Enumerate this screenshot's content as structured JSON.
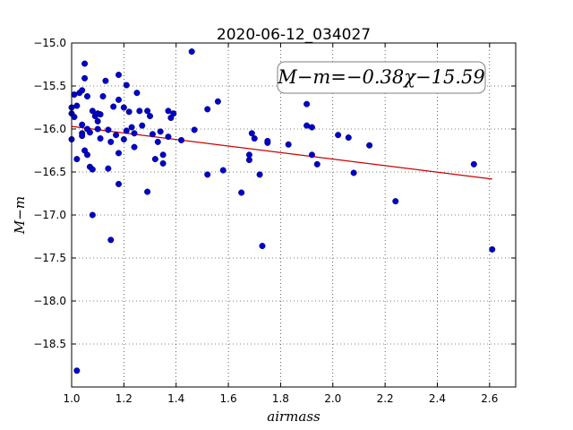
{
  "chart_data": {
    "type": "scatter",
    "title": "2020-06-12_034027",
    "xlabel": "airmass",
    "ylabel": "M−m",
    "xlim": [
      1.0,
      2.7
    ],
    "ylim": [
      -15.0,
      -19.0
    ],
    "y_inverted": true,
    "grid": true,
    "xticks": [
      "1.0",
      "1.2",
      "1.4",
      "1.6",
      "1.8",
      "2.0",
      "2.2",
      "2.4",
      "2.6"
    ],
    "yticks": [
      "−15.0",
      "−15.5",
      "−16.0",
      "−16.5",
      "−17.0",
      "−17.5",
      "−18.0",
      "−18.5"
    ],
    "xtick_values": [
      1.0,
      1.2,
      1.4,
      1.6,
      1.8,
      2.0,
      2.2,
      2.4,
      2.6
    ],
    "ytick_values": [
      -15.0,
      -15.5,
      -16.0,
      -16.5,
      -17.0,
      -17.5,
      -18.0,
      -18.5
    ],
    "annotation": "M−m=−0.38χ−15.59",
    "point_color": "#0000cc",
    "fit_color": "#cc0000",
    "fit": {
      "slope": -0.38,
      "intercept": -15.59,
      "x_range": [
        1.0,
        2.61
      ]
    },
    "points": [
      [
        1.0,
        -15.75
      ],
      [
        1.0,
        -15.82
      ],
      [
        1.0,
        -16.12
      ],
      [
        1.01,
        -15.6
      ],
      [
        1.01,
        -15.86
      ],
      [
        1.02,
        -15.73
      ],
      [
        1.02,
        -16.35
      ],
      [
        1.02,
        -18.81
      ],
      [
        1.03,
        -15.58
      ],
      [
        1.04,
        -15.55
      ],
      [
        1.04,
        -15.95
      ],
      [
        1.04,
        -16.05
      ],
      [
        1.04,
        -16.08
      ],
      [
        1.05,
        -16.25
      ],
      [
        1.05,
        -15.41
      ],
      [
        1.05,
        -15.24
      ],
      [
        1.06,
        -15.62
      ],
      [
        1.06,
        -16.0
      ],
      [
        1.06,
        -16.3
      ],
      [
        1.07,
        -16.04
      ],
      [
        1.07,
        -16.44
      ],
      [
        1.08,
        -15.79
      ],
      [
        1.08,
        -16.47
      ],
      [
        1.08,
        -17.0
      ],
      [
        1.09,
        -15.85
      ],
      [
        1.1,
        -15.82
      ],
      [
        1.1,
        -15.91
      ],
      [
        1.1,
        -16.0
      ],
      [
        1.11,
        -15.83
      ],
      [
        1.11,
        -16.11
      ],
      [
        1.12,
        -15.62
      ],
      [
        1.13,
        -15.44
      ],
      [
        1.14,
        -16.01
      ],
      [
        1.14,
        -16.46
      ],
      [
        1.15,
        -16.15
      ],
      [
        1.15,
        -17.29
      ],
      [
        1.16,
        -15.74
      ],
      [
        1.17,
        -16.07
      ],
      [
        1.18,
        -15.66
      ],
      [
        1.18,
        -16.28
      ],
      [
        1.18,
        -16.64
      ],
      [
        1.18,
        -15.37
      ],
      [
        1.2,
        -15.75
      ],
      [
        1.2,
        -16.12
      ],
      [
        1.21,
        -15.49
      ],
      [
        1.21,
        -16.02
      ],
      [
        1.22,
        -15.8
      ],
      [
        1.23,
        -15.98
      ],
      [
        1.24,
        -16.05
      ],
      [
        1.24,
        -16.21
      ],
      [
        1.25,
        -15.58
      ],
      [
        1.26,
        -15.79
      ],
      [
        1.27,
        -15.96
      ],
      [
        1.29,
        -16.73
      ],
      [
        1.29,
        -15.79
      ],
      [
        1.3,
        -15.85
      ],
      [
        1.31,
        -16.06
      ],
      [
        1.32,
        -16.35
      ],
      [
        1.33,
        -16.15
      ],
      [
        1.34,
        -16.03
      ],
      [
        1.35,
        -16.3
      ],
      [
        1.35,
        -16.4
      ],
      [
        1.37,
        -15.79
      ],
      [
        1.37,
        -16.09
      ],
      [
        1.38,
        -15.87
      ],
      [
        1.39,
        -15.82
      ],
      [
        1.42,
        -16.13
      ],
      [
        1.46,
        -15.1
      ],
      [
        1.47,
        -16.01
      ],
      [
        1.52,
        -15.77
      ],
      [
        1.52,
        -16.53
      ],
      [
        1.56,
        -15.68
      ],
      [
        1.58,
        -16.48
      ],
      [
        1.65,
        -16.74
      ],
      [
        1.68,
        -16.36
      ],
      [
        1.68,
        -16.3
      ],
      [
        1.69,
        -16.05
      ],
      [
        1.7,
        -16.11
      ],
      [
        1.72,
        -16.53
      ],
      [
        1.73,
        -17.36
      ],
      [
        1.75,
        -16.16
      ],
      [
        1.75,
        -16.14
      ],
      [
        1.83,
        -16.18
      ],
      [
        1.9,
        -15.71
      ],
      [
        1.9,
        -15.96
      ],
      [
        1.92,
        -15.98
      ],
      [
        1.92,
        -16.3
      ],
      [
        1.94,
        -16.41
      ],
      [
        2.02,
        -16.07
      ],
      [
        2.06,
        -16.1
      ],
      [
        2.08,
        -16.51
      ],
      [
        2.14,
        -16.19
      ],
      [
        2.24,
        -16.84
      ],
      [
        2.54,
        -16.41
      ],
      [
        2.61,
        -17.4
      ]
    ]
  }
}
